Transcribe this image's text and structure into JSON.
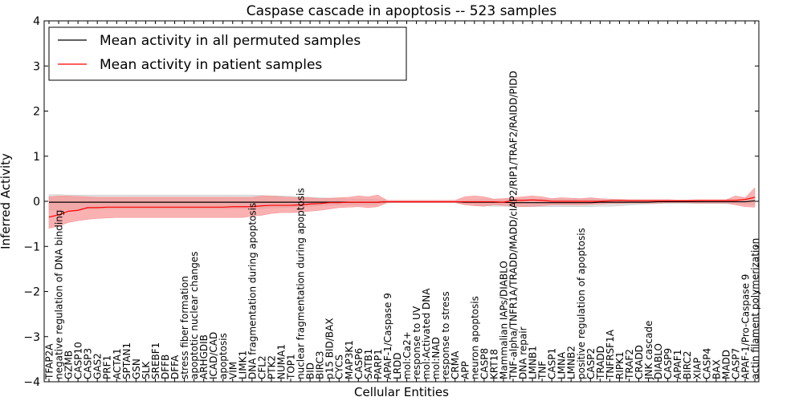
{
  "chart_data": {
    "type": "line",
    "title": "Caspase cascade in apoptosis -- 523 samples",
    "xlabel": "Cellular Entities",
    "ylabel": "Inferred Activity",
    "ylim": [
      -4,
      4
    ],
    "yticks": [
      -4,
      -3,
      -2,
      -1,
      0,
      1,
      2,
      3,
      4
    ],
    "ytick_labels": [
      "−4",
      "−3",
      "−2",
      "−1",
      "0",
      "1",
      "2",
      "3",
      "4"
    ],
    "legend_position": "top-left",
    "categories": [
      "TFAP2A",
      "negative regulation of DNA binding",
      "GZMB",
      "CASP10",
      "CASP3",
      "GAS2",
      "PRF1",
      "ACTA1",
      "SPTAN1",
      "GSN",
      "SLK",
      "SREBF1",
      "DFFB",
      "DFFA",
      "stress fiber formation",
      "apoptotic nuclear changes",
      "ARHGDIB",
      "ICAD/CAD",
      "apoptosis",
      "VIM",
      "LIMK1",
      "DNA fragmentation during apoptosis",
      "CFL2",
      "PTK2",
      "NUMA1",
      "TOP1",
      "nuclear fragmentation during apoptosis",
      "BID",
      "BIRC3",
      "p15 BID/BAX",
      "CYCS",
      "MAP3K1",
      "CASP6",
      "SATB1",
      "PARP1",
      "APAF-1/Caspase 9",
      "LRDD",
      "mol:Ca2+",
      "response to UV",
      "mol:Activated DNA",
      "mol:NAD",
      "response to stress",
      "CRMA",
      "APP",
      "neuron apoptosis",
      "CASP8",
      "KRT18",
      "Mammalian IAPs/DIABLO",
      "TNF-alpha/TNFR1A/TRADD/MADD/cIAP2/RIP1/TRAF2/RAIDD/PIDD",
      "DNA repair",
      "LMNB1",
      "TNF",
      "CASP1",
      "LMNA",
      "LMNB2",
      "positive regulation of apoptosis",
      "CASP2",
      "TRADD",
      "TNFRSF1A",
      "RIPK1",
      "TRAF2",
      "CRADD",
      "JNK cascade",
      "DIABLO",
      "CASP9",
      "APAF1",
      "BIRC2",
      "XIAP",
      "CASP4",
      "BAX",
      "MADD",
      "CASP7",
      "APAF-1/Pro-Caspase 9",
      "actin filament polymerization"
    ],
    "series": [
      {
        "name": "Mean activity in all permuted samples",
        "color": "#000000",
        "band_color": "#c8c8c8",
        "values": [
          -0.02,
          -0.02,
          -0.02,
          -0.02,
          -0.02,
          -0.02,
          -0.02,
          -0.02,
          -0.02,
          -0.02,
          -0.02,
          -0.02,
          -0.02,
          -0.02,
          -0.02,
          -0.02,
          -0.02,
          -0.02,
          -0.02,
          -0.02,
          -0.02,
          -0.02,
          -0.02,
          -0.02,
          -0.02,
          -0.02,
          -0.02,
          -0.02,
          -0.02,
          -0.02,
          -0.02,
          -0.02,
          -0.02,
          -0.02,
          -0.02,
          -0.01,
          -0.01,
          -0.01,
          -0.01,
          -0.01,
          -0.01,
          -0.01,
          -0.01,
          -0.02,
          -0.02,
          -0.02,
          -0.02,
          -0.02,
          -0.03,
          -0.03,
          -0.03,
          -0.03,
          -0.03,
          -0.03,
          -0.03,
          -0.03,
          -0.03,
          -0.02,
          -0.02,
          -0.02,
          -0.02,
          -0.02,
          -0.02,
          -0.01,
          -0.01,
          -0.01,
          -0.01,
          -0.01,
          -0.01,
          -0.01,
          -0.01,
          -0.01,
          -0.01,
          0.01
        ],
        "upper": [
          0.15,
          0.15,
          0.14,
          0.14,
          0.14,
          0.14,
          0.14,
          0.14,
          0.14,
          0.14,
          0.14,
          0.14,
          0.14,
          0.14,
          0.14,
          0.14,
          0.14,
          0.14,
          0.14,
          0.14,
          0.14,
          0.14,
          0.13,
          0.12,
          0.12,
          0.11,
          0.1,
          0.09,
          0.08,
          0.07,
          0.06,
          0.05,
          0.05,
          0.05,
          0.04,
          0.02,
          0.02,
          0.02,
          0.02,
          0.02,
          0.02,
          0.02,
          0.02,
          0.03,
          0.03,
          0.04,
          0.04,
          0.04,
          0.05,
          0.05,
          0.05,
          0.05,
          0.05,
          0.05,
          0.05,
          0.05,
          0.05,
          0.04,
          0.04,
          0.04,
          0.03,
          0.03,
          0.03,
          0.03,
          0.03,
          0.03,
          0.03,
          0.03,
          0.03,
          0.03,
          0.03,
          0.03,
          0.04,
          0.06
        ],
        "lower": [
          -0.19,
          -0.19,
          -0.18,
          -0.17,
          -0.17,
          -0.17,
          -0.17,
          -0.17,
          -0.17,
          -0.17,
          -0.17,
          -0.17,
          -0.17,
          -0.17,
          -0.17,
          -0.17,
          -0.17,
          -0.17,
          -0.17,
          -0.17,
          -0.17,
          -0.17,
          -0.16,
          -0.15,
          -0.14,
          -0.13,
          -0.12,
          -0.11,
          -0.1,
          -0.09,
          -0.08,
          -0.08,
          -0.08,
          -0.08,
          -0.06,
          -0.03,
          -0.03,
          -0.03,
          -0.03,
          -0.03,
          -0.03,
          -0.03,
          -0.03,
          -0.05,
          -0.07,
          -0.1,
          -0.11,
          -0.11,
          -0.12,
          -0.12,
          -0.12,
          -0.12,
          -0.12,
          -0.12,
          -0.12,
          -0.12,
          -0.12,
          -0.11,
          -0.11,
          -0.1,
          -0.08,
          -0.07,
          -0.06,
          -0.05,
          -0.05,
          -0.05,
          -0.05,
          -0.05,
          -0.05,
          -0.05,
          -0.05,
          -0.05,
          -0.06,
          -0.08
        ]
      },
      {
        "name": "Mean activity in patient samples",
        "color": "#ff0000",
        "band_color": "#f89090",
        "values": [
          -0.35,
          -0.3,
          -0.22,
          -0.2,
          -0.14,
          -0.14,
          -0.13,
          -0.13,
          -0.13,
          -0.13,
          -0.13,
          -0.13,
          -0.13,
          -0.13,
          -0.13,
          -0.13,
          -0.13,
          -0.13,
          -0.13,
          -0.12,
          -0.12,
          -0.12,
          -0.1,
          -0.09,
          -0.09,
          -0.09,
          -0.08,
          -0.06,
          -0.05,
          -0.03,
          -0.03,
          -0.02,
          -0.02,
          -0.02,
          -0.02,
          -0.01,
          -0.01,
          -0.01,
          -0.01,
          -0.01,
          -0.01,
          -0.01,
          -0.01,
          -0.01,
          -0.01,
          -0.01,
          -0.01,
          -0.02,
          0.02,
          0.02,
          0.03,
          0.02,
          0.0,
          0.0,
          0.0,
          0.0,
          0.0,
          0.0,
          0.01,
          0.02,
          0.01,
          0.01,
          0.01,
          0.01,
          0.01,
          0.01,
          0.01,
          0.02,
          0.02,
          0.02,
          0.02,
          0.02,
          0.04,
          0.09
        ],
        "upper": [
          0.1,
          0.12,
          0.12,
          0.11,
          0.1,
          0.09,
          0.09,
          0.09,
          0.09,
          0.09,
          0.09,
          0.09,
          0.09,
          0.09,
          0.09,
          0.09,
          0.09,
          0.09,
          0.09,
          0.09,
          0.09,
          0.09,
          0.12,
          0.12,
          0.1,
          0.09,
          0.08,
          0.08,
          0.06,
          0.07,
          0.08,
          0.09,
          0.12,
          0.1,
          0.14,
          0.02,
          0.02,
          0.02,
          0.02,
          0.02,
          0.02,
          0.02,
          0.02,
          0.1,
          0.12,
          0.1,
          0.05,
          0.06,
          0.08,
          0.1,
          0.12,
          0.1,
          0.06,
          0.08,
          0.07,
          0.06,
          0.08,
          0.06,
          0.05,
          0.04,
          0.04,
          0.04,
          0.04,
          0.04,
          0.04,
          0.03,
          0.03,
          0.03,
          0.03,
          0.03,
          0.03,
          0.12,
          0.08,
          0.3
        ],
        "lower": [
          -0.6,
          -0.55,
          -0.47,
          -0.43,
          -0.4,
          -0.38,
          -0.37,
          -0.36,
          -0.36,
          -0.36,
          -0.36,
          -0.36,
          -0.36,
          -0.36,
          -0.36,
          -0.36,
          -0.36,
          -0.36,
          -0.36,
          -0.36,
          -0.36,
          -0.33,
          -0.31,
          -0.27,
          -0.25,
          -0.25,
          -0.24,
          -0.22,
          -0.2,
          -0.17,
          -0.14,
          -0.13,
          -0.12,
          -0.14,
          -0.12,
          -0.03,
          -0.03,
          -0.03,
          -0.03,
          -0.03,
          -0.03,
          -0.03,
          -0.03,
          -0.08,
          -0.1,
          -0.11,
          -0.08,
          -0.09,
          -0.1,
          -0.12,
          -0.11,
          -0.1,
          -0.08,
          -0.08,
          -0.08,
          -0.08,
          -0.07,
          -0.06,
          -0.05,
          -0.05,
          -0.04,
          -0.04,
          -0.04,
          -0.04,
          -0.03,
          -0.03,
          -0.03,
          -0.04,
          -0.04,
          -0.04,
          -0.04,
          -0.08,
          -0.12,
          -0.13
        ]
      }
    ]
  }
}
